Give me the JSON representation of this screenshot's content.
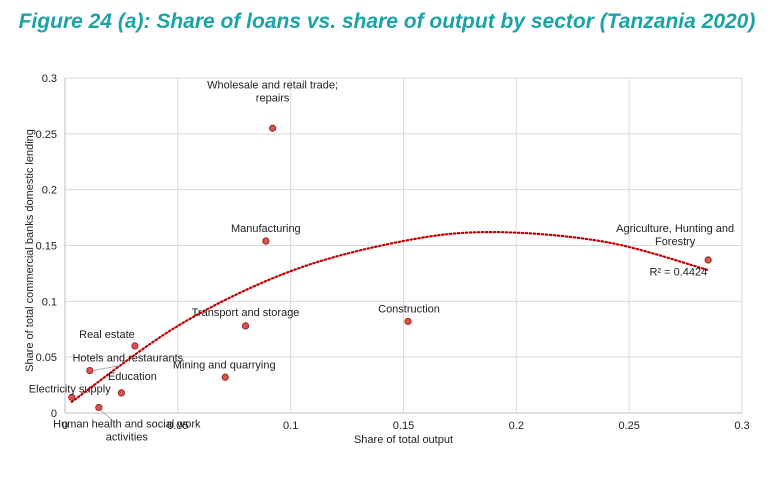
{
  "title": "Figure 24 (a): Share of loans vs. share of output by sector (Tanzania 2020)",
  "chart_data": {
    "type": "scatter",
    "xlabel": "Share of total output",
    "ylabel": "Share of total  commercial banks domestic lending",
    "xlim": [
      0,
      0.3
    ],
    "ylim": [
      0,
      0.3
    ],
    "xticks": [
      "0",
      "0.05",
      "0.1",
      "0.15",
      "0.2",
      "0.25",
      "0.3"
    ],
    "yticks": [
      "0",
      "0.05",
      "0.1",
      "0.15",
      "0.2",
      "0.25",
      "0.3"
    ],
    "grid": "horizontal and vertical",
    "points": [
      {
        "label": [
          "Wholesale and retail trade;",
          "repairs"
        ],
        "x": 0.092,
        "y": 0.255
      },
      {
        "label": [
          "Manufacturing"
        ],
        "x": 0.089,
        "y": 0.154
      },
      {
        "label": [
          "Agriculture, Hunting and",
          "Forestry"
        ],
        "x": 0.285,
        "y": 0.137
      },
      {
        "label": [
          "Construction"
        ],
        "x": 0.152,
        "y": 0.082
      },
      {
        "label": [
          "Transport and storage"
        ],
        "x": 0.08,
        "y": 0.078
      },
      {
        "label": [
          "Real estate"
        ],
        "x": 0.031,
        "y": 0.06
      },
      {
        "label": [
          "Hotels and restaurants"
        ],
        "x": 0.011,
        "y": 0.038
      },
      {
        "label": [
          "Mining and quarrying"
        ],
        "x": 0.071,
        "y": 0.032
      },
      {
        "label": [
          "Education"
        ],
        "x": 0.025,
        "y": 0.018
      },
      {
        "label": [
          "Electricity supply"
        ],
        "x": 0.003,
        "y": 0.014
      },
      {
        "label": [
          "Human health and social work",
          "activities"
        ],
        "x": 0.015,
        "y": 0.005
      }
    ],
    "trendline": {
      "type": "polynomial",
      "r_squared_label": "R² = 0.4424",
      "points": [
        {
          "x": 0.003,
          "y": 0.01
        },
        {
          "x": 0.05,
          "y": 0.078
        },
        {
          "x": 0.1,
          "y": 0.127
        },
        {
          "x": 0.15,
          "y": 0.154
        },
        {
          "x": 0.19,
          "y": 0.162
        },
        {
          "x": 0.24,
          "y": 0.153
        },
        {
          "x": 0.285,
          "y": 0.128
        }
      ]
    },
    "colors": {
      "marker_fill": "#d9534f",
      "marker_stroke": "#8b1c1c",
      "trendline": "#c00000",
      "grid": "#d9d9d9",
      "title": "#1aa3a8"
    }
  }
}
